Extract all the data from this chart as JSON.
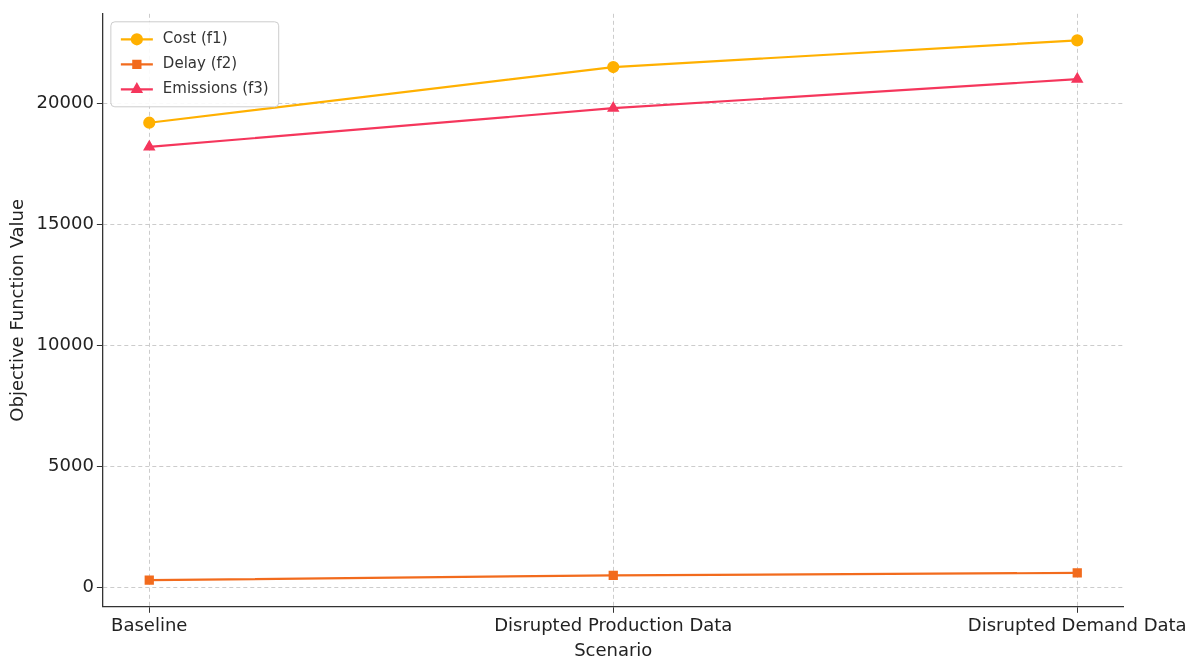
{
  "chart_data": {
    "type": "line",
    "xlabel": "Scenario",
    "ylabel": "Objective Function Value",
    "categories": [
      "Baseline",
      "Disrupted Production Data",
      "Disrupted Demand Data"
    ],
    "series": [
      {
        "name": "Cost (f1)",
        "color": "#ffb000",
        "marker": "circle",
        "values": [
          19200,
          21500,
          22600
        ]
      },
      {
        "name": "Delay (f2)",
        "color": "#f26b1d",
        "marker": "square",
        "values": [
          300,
          500,
          600
        ]
      },
      {
        "name": "Emissions (f3)",
        "color": "#f5365c",
        "marker": "triangle",
        "values": [
          18200,
          19800,
          21000
        ]
      }
    ],
    "ylim": [
      -800,
      23700
    ],
    "yticks": [
      0,
      5000,
      10000,
      15000,
      20000
    ],
    "grid": true,
    "legend": "top left",
    "line_style": "solid"
  }
}
